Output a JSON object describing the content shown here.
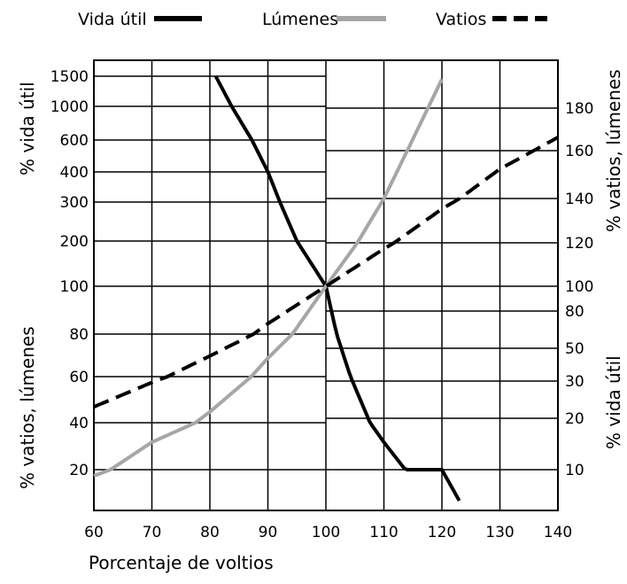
{
  "chart_data": {
    "type": "line",
    "title": "",
    "xlabel": "Porcentaje de voltios",
    "x_ticks": [
      "60",
      "70",
      "80",
      "90",
      "100",
      "110",
      "120",
      "130",
      "140"
    ],
    "xlim": [
      60,
      140
    ],
    "left_axis": {
      "upper_label": "% vida útil",
      "upper_ticks": [
        "1500",
        "1000",
        "600",
        "400",
        "300",
        "200",
        "100"
      ],
      "lower_label": "% vatios, lúmenes",
      "lower_ticks": [
        "80",
        "60",
        "40",
        "20"
      ]
    },
    "right_axis": {
      "upper_label": "% vatios, lúmenes",
      "upper_ticks": [
        "180",
        "160",
        "140",
        "120",
        "100"
      ],
      "lower_label": "% vida útil",
      "lower_ticks": [
        "80",
        "50",
        "30",
        "20",
        "10"
      ]
    },
    "grid": true,
    "legend_position": "top",
    "series": [
      {
        "name": "Vida útil",
        "style": "solid",
        "color": "#000000",
        "axis": "vida útil",
        "x": [
          81,
          90,
          100,
          110,
          120,
          123
        ],
        "y": [
          1500,
          400,
          100,
          30,
          10,
          7
        ]
      },
      {
        "name": "Lúmenes",
        "style": "solid",
        "color": "#a6a6a6",
        "axis": "vatios, lúmenes",
        "x": [
          60,
          70,
          80,
          90,
          100,
          110,
          120
        ],
        "y": [
          17,
          30,
          44,
          68,
          100,
          140,
          195
        ]
      },
      {
        "name": "Vatios",
        "style": "dashed",
        "color": "#000000",
        "axis": "vatios, lúmenes",
        "x": [
          60,
          70,
          80,
          90,
          100,
          110,
          120,
          130,
          140
        ],
        "y": [
          46,
          57,
          69,
          84,
          100,
          117,
          135,
          152,
          166
        ]
      }
    ]
  }
}
